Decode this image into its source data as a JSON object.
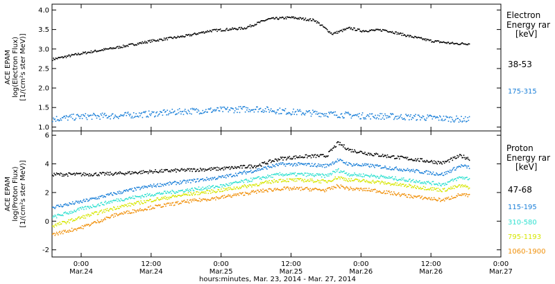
{
  "figure": {
    "xlabel": "hours:minutes, Mar. 23, 2014 - Mar. 27, 2014",
    "x_tick_labels": [
      {
        "time": "0:00",
        "date": "Mar.24",
        "hour": 24
      },
      {
        "time": "12:00",
        "date": "Mar.24",
        "hour": 36
      },
      {
        "time": "0:00",
        "date": "Mar.25",
        "hour": 48
      },
      {
        "time": "12:00",
        "date": "Mar.25",
        "hour": 60
      },
      {
        "time": "0:00",
        "date": "Mar.26",
        "hour": 72
      },
      {
        "time": "12:00",
        "date": "Mar.26",
        "hour": 84
      },
      {
        "time": "0:00",
        "date": "Mar.27",
        "hour": 96
      }
    ]
  },
  "chart_data": [
    {
      "type": "scatter",
      "panel": "electron",
      "ylabel": [
        "ACE EPAM",
        "log(Electron Flux)",
        "[1/(cm²s ster MeV)]"
      ],
      "ylim": [
        0.9,
        4.15
      ],
      "xlim_hours": [
        19,
        96
      ],
      "y_ticks": [
        "1.0",
        "1.5",
        "2.0",
        "2.5",
        "3.0",
        "3.5",
        "4.0"
      ],
      "legend_title": [
        "Electron",
        "Energy rar",
        "[keV]"
      ],
      "series": [
        {
          "name": "38-53",
          "color": "#000000",
          "x": [
            19,
            24,
            30,
            36,
            42,
            46,
            52,
            56,
            60,
            64,
            67,
            70,
            72,
            76,
            80,
            84,
            88,
            90.5
          ],
          "y": [
            2.75,
            2.9,
            3.05,
            3.22,
            3.35,
            3.48,
            3.55,
            3.78,
            3.82,
            3.75,
            3.4,
            3.55,
            3.48,
            3.5,
            3.35,
            3.22,
            3.15,
            3.15
          ]
        },
        {
          "name": "175-315",
          "color": "#1a7fd8",
          "x": [
            19,
            24,
            30,
            36,
            42,
            48,
            54,
            60,
            66,
            72,
            78,
            84,
            90.5
          ],
          "y": [
            1.22,
            1.28,
            1.3,
            1.35,
            1.42,
            1.45,
            1.48,
            1.4,
            1.35,
            1.3,
            1.28,
            1.25,
            1.2
          ]
        }
      ]
    },
    {
      "type": "scatter",
      "panel": "proton",
      "ylabel": [
        "ACE EPAM",
        "log(Proton Flux)",
        "[1/(cm²s ster MeV)]"
      ],
      "ylim": [
        -2.5,
        6.3
      ],
      "xlim_hours": [
        19,
        96
      ],
      "y_ticks": [
        "-2",
        "0",
        "2",
        "4",
        "6"
      ],
      "legend_title": [
        "Proton",
        "Energy rar",
        "[keV]"
      ],
      "series": [
        {
          "name": "47-68",
          "color": "#000000",
          "x": [
            19,
            24,
            30,
            36,
            42,
            48,
            54,
            58,
            62,
            66,
            68,
            70,
            74,
            80,
            86,
            89,
            90.5
          ],
          "y": [
            3.3,
            3.3,
            3.35,
            3.5,
            3.6,
            3.7,
            3.9,
            4.4,
            4.55,
            4.6,
            5.5,
            5.0,
            4.7,
            4.4,
            4.1,
            4.6,
            4.4
          ]
        },
        {
          "name": "115-195",
          "color": "#1a7fd8",
          "x": [
            19,
            24,
            30,
            36,
            42,
            48,
            54,
            58,
            62,
            66,
            68,
            70,
            74,
            80,
            86,
            89,
            90.5
          ],
          "y": [
            1.0,
            1.4,
            2.0,
            2.5,
            2.8,
            3.1,
            3.6,
            4.0,
            4.0,
            3.9,
            4.3,
            4.0,
            3.9,
            3.6,
            3.3,
            3.9,
            3.8
          ]
        },
        {
          "name": "310-580",
          "color": "#2fe0d0",
          "x": [
            19,
            24,
            30,
            36,
            42,
            48,
            54,
            58,
            62,
            66,
            68,
            70,
            74,
            80,
            86,
            89,
            90.5
          ],
          "y": [
            0.3,
            0.9,
            1.5,
            1.9,
            2.2,
            2.5,
            3.0,
            3.3,
            3.3,
            3.2,
            3.6,
            3.3,
            3.2,
            2.9,
            2.6,
            3.1,
            3.0
          ]
        },
        {
          "name": "795-1193",
          "color": "#d6e600",
          "x": [
            19,
            24,
            30,
            36,
            42,
            48,
            54,
            58,
            62,
            66,
            68,
            70,
            74,
            80,
            86,
            89,
            90.5
          ],
          "y": [
            -0.3,
            0.3,
            1.0,
            1.5,
            1.9,
            2.2,
            2.6,
            2.9,
            2.9,
            2.8,
            3.1,
            2.9,
            2.8,
            2.5,
            2.2,
            2.5,
            2.4
          ]
        },
        {
          "name": "1060-1900",
          "color": "#f0900a",
          "x": [
            19,
            24,
            30,
            36,
            42,
            48,
            54,
            58,
            62,
            66,
            68,
            70,
            74,
            80,
            86,
            89,
            90.5
          ],
          "y": [
            -0.9,
            -0.4,
            0.5,
            1.0,
            1.4,
            1.7,
            2.1,
            2.3,
            2.3,
            2.2,
            2.5,
            2.3,
            2.2,
            1.8,
            1.5,
            1.9,
            1.8
          ]
        }
      ]
    }
  ]
}
